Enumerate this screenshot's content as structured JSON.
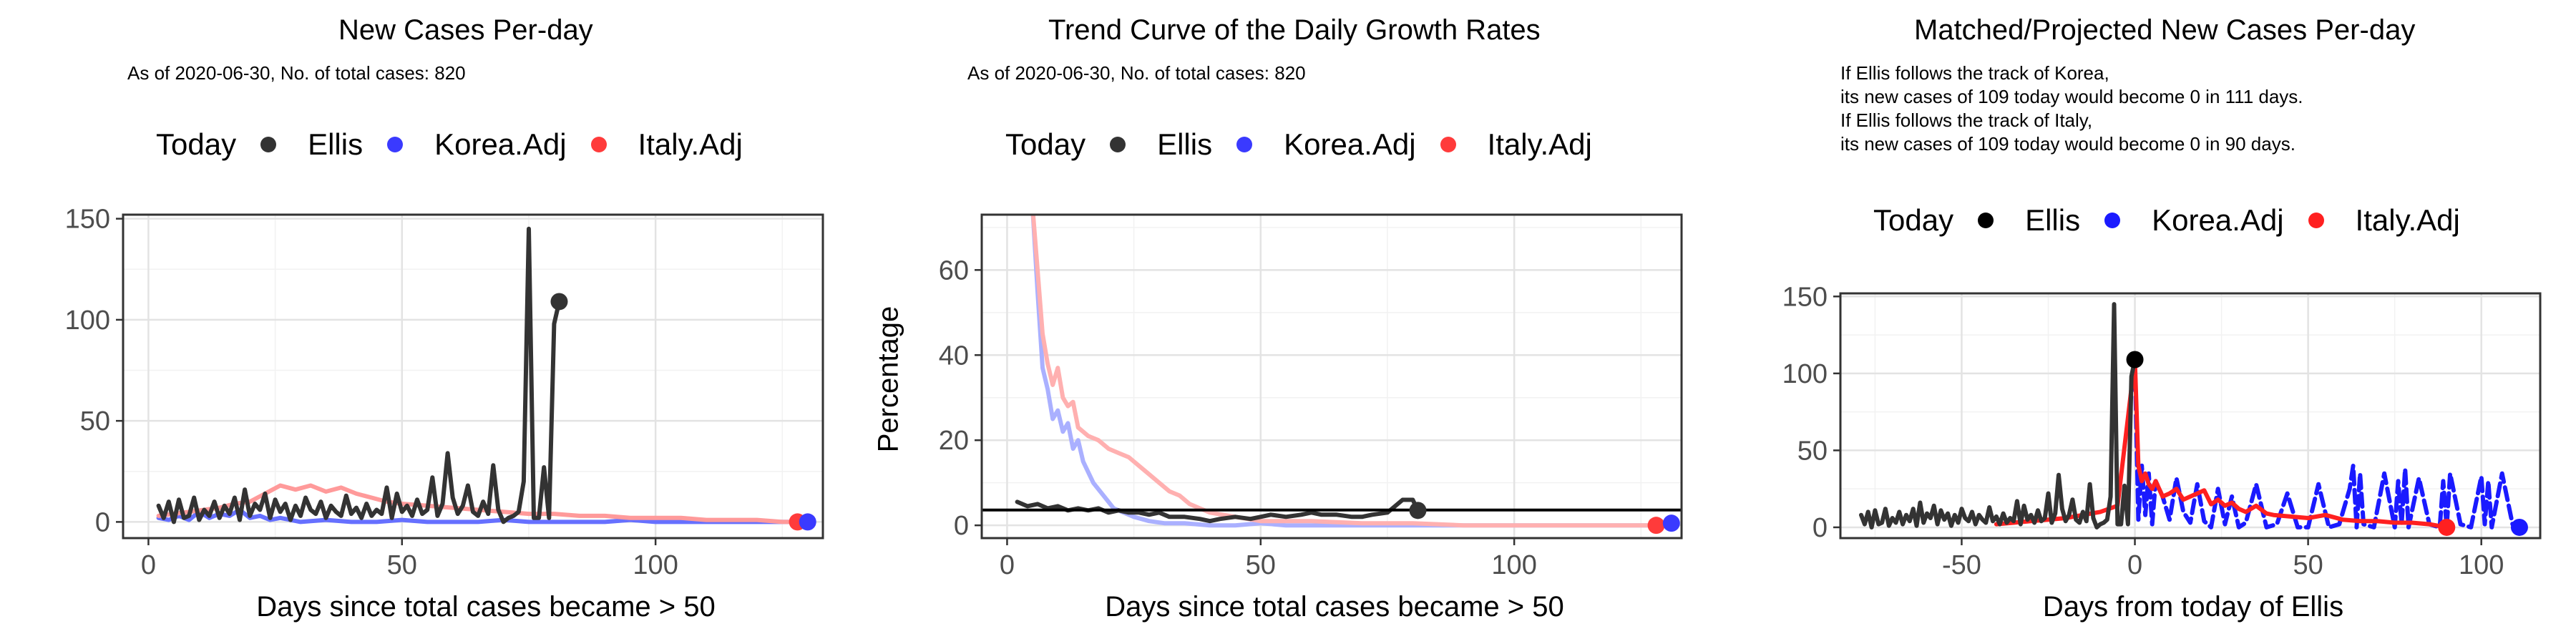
{
  "chart_data": [
    {
      "type": "line",
      "title": "New Cases Per-day",
      "subtitle": "As of 2020-06-30, No. of total cases: 820",
      "xlabel": "Days since total cases became > 50",
      "ylabel": "",
      "xlim": [
        -5,
        133
      ],
      "ylim": [
        -8,
        152
      ],
      "xticks": [
        0,
        50,
        100
      ],
      "yticks": [
        0,
        50,
        100,
        150
      ],
      "grid": true,
      "legend": {
        "title": "Today",
        "position": "top",
        "items": [
          "Ellis",
          "Korea.Adj",
          "Italy.Adj"
        ]
      },
      "series": [
        {
          "name": "Ellis",
          "color": "#333333",
          "x": [
            2,
            3,
            4,
            5,
            6,
            7,
            8,
            9,
            10,
            11,
            12,
            13,
            14,
            15,
            16,
            17,
            18,
            19,
            20,
            21,
            22,
            23,
            24,
            25,
            26,
            27,
            28,
            29,
            30,
            31,
            32,
            33,
            34,
            35,
            36,
            37,
            38,
            39,
            40,
            41,
            42,
            43,
            44,
            45,
            46,
            47,
            48,
            49,
            50,
            51,
            52,
            53,
            54,
            55,
            56,
            57,
            58,
            59,
            60,
            61,
            62,
            63,
            64,
            65,
            66,
            67,
            68,
            69,
            70,
            71,
            72,
            73,
            74,
            75,
            76,
            77,
            78,
            79,
            80,
            81
          ],
          "y": [
            8,
            2,
            10,
            0,
            11,
            2,
            3,
            12,
            1,
            6,
            3,
            10,
            2,
            8,
            4,
            12,
            1,
            16,
            3,
            9,
            6,
            14,
            2,
            11,
            5,
            9,
            1,
            8,
            3,
            12,
            6,
            4,
            10,
            2,
            8,
            5,
            3,
            13,
            4,
            7,
            2,
            9,
            3,
            6,
            4,
            17,
            2,
            14,
            5,
            8,
            3,
            11,
            4,
            6,
            22,
            3,
            9,
            34,
            12,
            4,
            8,
            18,
            5,
            3,
            10,
            4,
            28,
            6,
            0,
            2,
            3,
            5,
            20,
            145,
            2,
            2,
            27,
            2,
            98,
            109
          ]
        },
        {
          "name": "Korea.Adj",
          "color": "#6670ff",
          "x": [
            2,
            4,
            6,
            8,
            10,
            12,
            14,
            16,
            18,
            20,
            22,
            24,
            26,
            28,
            30,
            35,
            40,
            45,
            50,
            55,
            60,
            65,
            70,
            75,
            80,
            85,
            90,
            95,
            100,
            105,
            110,
            115,
            120,
            125,
            130
          ],
          "y": [
            2,
            1,
            3,
            1,
            5,
            2,
            4,
            3,
            6,
            2,
            3,
            1,
            2,
            1,
            0,
            1,
            0,
            0,
            1,
            0,
            0,
            0,
            1,
            0,
            0,
            0,
            0,
            1,
            0,
            0,
            0,
            0,
            0,
            0,
            0
          ]
        },
        {
          "name": "Italy.Adj",
          "color": "#ff9a9a",
          "x": [
            2,
            5,
            8,
            11,
            14,
            17,
            20,
            23,
            26,
            29,
            32,
            35,
            38,
            41,
            44,
            47,
            50,
            55,
            60,
            65,
            70,
            75,
            80,
            85,
            90,
            95,
            100,
            105,
            110,
            115,
            120,
            125,
            129
          ],
          "y": [
            3,
            4,
            5,
            6,
            7,
            9,
            10,
            14,
            18,
            16,
            18,
            15,
            17,
            14,
            12,
            10,
            9,
            8,
            7,
            6,
            5,
            4,
            4,
            3,
            3,
            2,
            2,
            2,
            1,
            1,
            1,
            0,
            0
          ]
        }
      ],
      "today_points": [
        {
          "name": "Ellis",
          "x": 81,
          "y": 109,
          "color": "#333333"
        },
        {
          "name": "Italy.Adj",
          "x": 128,
          "y": 0,
          "color": "#ff3b3b"
        },
        {
          "name": "Korea.Adj",
          "x": 130,
          "y": 0,
          "color": "#3a3aff"
        }
      ]
    },
    {
      "type": "line",
      "title": "Trend Curve of the Daily Growth Rates",
      "subtitle": "As of 2020-06-30, No. of total cases: 820",
      "xlabel": "Days since total cases became > 50",
      "ylabel": "Percentage",
      "xlim": [
        -5,
        133
      ],
      "ylim": [
        -3,
        73
      ],
      "xticks": [
        0,
        50,
        100
      ],
      "yticks": [
        0,
        20,
        40,
        60
      ],
      "grid": true,
      "hline": 3.6,
      "legend": {
        "title": "Today",
        "position": "top",
        "items": [
          "Ellis",
          "Korea.Adj",
          "Italy.Adj"
        ]
      },
      "series": [
        {
          "name": "Ellis",
          "color": "#333333",
          "x": [
            2,
            4,
            6,
            8,
            10,
            12,
            14,
            16,
            18,
            20,
            22,
            24,
            26,
            28,
            30,
            32,
            35,
            38,
            40,
            42,
            45,
            48,
            50,
            52,
            55,
            58,
            60,
            62,
            65,
            68,
            70,
            72,
            75,
            78,
            80,
            81
          ],
          "y": [
            5.5,
            4.5,
            5,
            4,
            4.5,
            3.5,
            4,
            3.5,
            4,
            3,
            3.5,
            3,
            3,
            2.5,
            3,
            2,
            2,
            1.5,
            1,
            1.5,
            2,
            1.5,
            2,
            2.5,
            2,
            2.5,
            3,
            2.5,
            2.5,
            2,
            2,
            2.5,
            3,
            6,
            6,
            3.5
          ]
        },
        {
          "name": "Korea.Adj",
          "color": "#aab0ff",
          "x": [
            5,
            6,
            7,
            8,
            9,
            10,
            11,
            12,
            13,
            14,
            15,
            17,
            19,
            21,
            23,
            25,
            28,
            31,
            35,
            40,
            45,
            50,
            55,
            60,
            70,
            80,
            90,
            100,
            110,
            120,
            130
          ],
          "y": [
            75,
            55,
            37,
            32,
            25,
            27,
            22,
            24,
            18,
            20,
            15,
            10,
            7,
            4,
            3,
            2,
            1,
            0.5,
            0.5,
            0,
            0,
            0.5,
            0,
            0,
            0,
            0,
            0,
            0,
            0,
            0,
            0
          ]
        },
        {
          "name": "Italy.Adj",
          "color": "#ffb0b0",
          "x": [
            5,
            6,
            7,
            8,
            9,
            10,
            11,
            12,
            13,
            14,
            15,
            16,
            18,
            20,
            22,
            24,
            26,
            28,
            30,
            32,
            34,
            36,
            38,
            40,
            45,
            50,
            60,
            70,
            80,
            90,
            100,
            110,
            120,
            128
          ],
          "y": [
            75,
            60,
            45,
            38,
            33,
            37,
            30,
            28,
            29,
            23,
            22,
            21,
            20,
            18,
            17,
            16,
            14,
            12,
            10,
            8,
            7,
            5,
            4,
            3,
            2,
            1,
            1,
            0.5,
            0.5,
            0,
            0,
            0,
            0,
            0
          ]
        }
      ],
      "today_points": [
        {
          "name": "Ellis",
          "x": 81,
          "y": 3.5,
          "color": "#333333"
        },
        {
          "name": "Italy.Adj",
          "x": 128,
          "y": 0,
          "color": "#ff3b3b"
        },
        {
          "name": "Korea.Adj",
          "x": 131,
          "y": 0.5,
          "color": "#3a3aff"
        }
      ]
    },
    {
      "type": "line",
      "title": "Matched/Projected New Cases Per-day",
      "subtitle": "If Ellis follows the track of Korea,\nits new cases of 109 today would become 0 in 111 days.\nIf Ellis follows the track of Italy,\nits new cases of 109 today would become 0 in 90 days.",
      "xlabel": "Days from today of Ellis",
      "ylabel": "",
      "xlim": [
        -85,
        117
      ],
      "ylim": [
        -7,
        152
      ],
      "xticks": [
        -50,
        0,
        50,
        100
      ],
      "yticks": [
        0,
        50,
        100,
        150
      ],
      "grid": true,
      "legend": {
        "title": "Today",
        "position": "top",
        "items": [
          "Ellis",
          "Korea.Adj",
          "Italy.Adj"
        ]
      },
      "series": [
        {
          "name": "Ellis",
          "color": "#333333",
          "x": [
            -79,
            -78,
            -77,
            -76,
            -75,
            -74,
            -73,
            -72,
            -71,
            -70,
            -69,
            -68,
            -67,
            -66,
            -65,
            -64,
            -63,
            -62,
            -61,
            -60,
            -59,
            -58,
            -57,
            -56,
            -55,
            -54,
            -53,
            -52,
            -51,
            -50,
            -49,
            -48,
            -47,
            -46,
            -45,
            -44,
            -43,
            -42,
            -41,
            -40,
            -39,
            -38,
            -37,
            -36,
            -35,
            -34,
            -33,
            -32,
            -31,
            -30,
            -29,
            -28,
            -27,
            -26,
            -25,
            -24,
            -23,
            -22,
            -21,
            -20,
            -19,
            -18,
            -17,
            -16,
            -15,
            -14,
            -13,
            -12,
            -11,
            -10,
            -9,
            -8,
            -7,
            -6,
            -5,
            -4,
            -3,
            -2,
            -1,
            0
          ],
          "y": [
            8,
            2,
            10,
            0,
            11,
            2,
            3,
            12,
            1,
            6,
            3,
            10,
            2,
            8,
            4,
            12,
            1,
            16,
            3,
            9,
            6,
            14,
            2,
            11,
            5,
            9,
            1,
            8,
            3,
            12,
            6,
            4,
            10,
            2,
            8,
            5,
            3,
            13,
            4,
            7,
            2,
            9,
            3,
            6,
            4,
            17,
            2,
            14,
            5,
            8,
            3,
            11,
            4,
            6,
            22,
            3,
            9,
            34,
            12,
            4,
            8,
            18,
            5,
            3,
            10,
            4,
            28,
            6,
            0,
            2,
            3,
            5,
            20,
            145,
            2,
            2,
            27,
            2,
            98,
            109
          ]
        },
        {
          "name": "Korea.Adj",
          "color": "#1a1aff",
          "dashed": true,
          "x": [
            0,
            1,
            2,
            3,
            4,
            5,
            6,
            8,
            10,
            12,
            14,
            16,
            18,
            20,
            22,
            24,
            26,
            28,
            30,
            32,
            35,
            38,
            41,
            44,
            47,
            50,
            53,
            56,
            59,
            62,
            63,
            64,
            65,
            66,
            69,
            72,
            75,
            76,
            77,
            78,
            79,
            82,
            85,
            88,
            89,
            90,
            91,
            94,
            97,
            100,
            101,
            102,
            103,
            106,
            109,
            110,
            111
          ],
          "y": [
            109,
            5,
            40,
            8,
            35,
            2,
            30,
            20,
            5,
            32,
            10,
            3,
            28,
            4,
            0,
            25,
            2,
            20,
            0,
            3,
            28,
            0,
            2,
            22,
            0,
            0,
            28,
            0,
            2,
            25,
            40,
            0,
            35,
            2,
            0,
            35,
            0,
            30,
            2,
            38,
            0,
            32,
            2,
            0,
            30,
            0,
            35,
            2,
            0,
            33,
            2,
            30,
            0,
            35,
            2,
            0,
            0
          ]
        },
        {
          "name": "Italy.Adj",
          "color": "#ff2020",
          "x": [
            -40,
            -35,
            -30,
            -25,
            -20,
            -15,
            -10,
            -5,
            0,
            1,
            2,
            3,
            4,
            5,
            6,
            8,
            10,
            12,
            14,
            16,
            18,
            20,
            22,
            24,
            26,
            28,
            30,
            32,
            35,
            38,
            40,
            45,
            50,
            55,
            60,
            65,
            70,
            75,
            80,
            85,
            90
          ],
          "y": [
            2,
            3,
            4,
            5,
            6,
            8,
            10,
            14,
            109,
            40,
            30,
            35,
            28,
            25,
            30,
            20,
            22,
            25,
            18,
            20,
            22,
            24,
            15,
            18,
            14,
            16,
            12,
            10,
            14,
            9,
            8,
            7,
            6,
            8,
            5,
            4,
            4,
            3,
            3,
            2,
            0
          ]
        }
      ],
      "today_points": [
        {
          "name": "Ellis",
          "x": 0,
          "y": 109,
          "color": "#000000"
        },
        {
          "name": "Italy.Adj",
          "x": 90,
          "y": 0,
          "color": "#ff2020"
        },
        {
          "name": "Korea.Adj",
          "x": 111,
          "y": 0,
          "color": "#1a1aff"
        }
      ]
    }
  ]
}
